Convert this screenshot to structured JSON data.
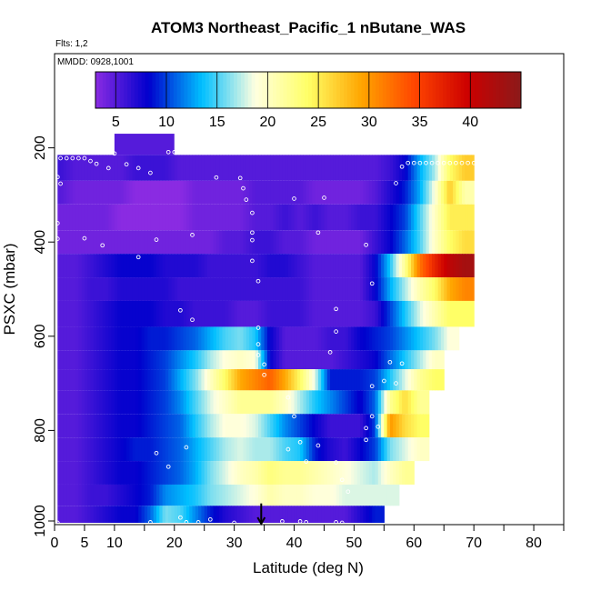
{
  "chart_data": {
    "type": "heatmap",
    "title": "ATOM3 Northeast_Pacific_1 nButane_WAS",
    "flights_label": "Flts: 1,2",
    "date_label": "MMDD: 0928,1001",
    "xlabel": "Latitude (deg N)",
    "ylabel": "PSXC (mbar)",
    "xlim": [
      0,
      85
    ],
    "ylim": [
      1000,
      0
    ],
    "x_ticks": [
      0,
      5,
      10,
      20,
      30,
      40,
      50,
      60,
      70,
      80
    ],
    "y_ticks": [
      200,
      400,
      600,
      800,
      1000
    ],
    "colorbar": {
      "range": [
        3,
        45
      ],
      "ticks": [
        5,
        10,
        15,
        20,
        25,
        30,
        35,
        40
      ],
      "colors": [
        "#8a2be2",
        "#0000cd",
        "#00bfff",
        "#ffffe0",
        "#ffff66",
        "#ffa500",
        "#ff4500",
        "#cc0000",
        "#8b1a1a"
      ]
    },
    "latitude_bins": [
      1,
      3.5,
      6,
      8.5,
      11,
      13.5,
      16,
      18.5,
      21,
      23.5,
      26,
      28.5,
      31,
      33.5,
      36,
      38.5,
      41,
      43.5,
      46,
      48.5,
      51,
      53.5,
      56,
      58.5,
      61,
      63.5,
      66,
      68.5,
      71
    ],
    "pressure_bands": [
      {
        "p_top": 170,
        "p_bot": 215,
        "values": [
          null,
          null,
          null,
          null,
          null,
          null,
          null,
          null,
          null,
          null,
          null,
          null,
          null,
          null,
          null,
          null,
          null,
          null,
          null,
          null,
          null,
          null,
          null,
          null,
          null,
          null,
          null,
          null,
          null
        ]
      },
      {
        "p_top": 215,
        "p_bot": 270,
        "values": [
          6,
          5,
          5,
          5,
          5,
          6,
          6,
          6,
          5,
          5,
          5,
          5,
          5,
          5,
          5,
          5,
          5,
          5,
          5,
          5,
          5,
          5,
          6,
          8,
          13,
          17,
          24,
          27,
          null
        ]
      },
      {
        "p_top": 270,
        "p_bot": 320,
        "values": [
          5,
          4,
          4,
          4,
          4,
          3,
          3,
          3,
          3,
          4,
          4,
          4,
          4,
          5,
          5,
          5,
          5,
          4,
          4,
          4,
          4,
          5,
          7,
          9,
          13,
          19,
          27,
          21,
          null
        ]
      },
      {
        "p_top": 320,
        "p_bot": 375,
        "values": [
          4,
          4,
          4,
          4,
          3,
          3,
          3,
          3,
          3,
          4,
          4,
          4,
          4,
          5,
          5,
          6,
          5,
          6,
          5,
          5,
          6,
          6,
          8,
          10,
          15,
          20,
          25,
          25,
          null
        ]
      },
      {
        "p_top": 375,
        "p_bot": 425,
        "values": [
          4,
          4,
          4,
          4,
          4,
          4,
          4,
          4,
          4,
          4,
          4,
          5,
          5,
          6,
          6,
          5,
          5,
          4,
          4,
          4,
          4,
          6,
          8,
          11,
          15,
          20,
          24,
          26,
          null
        ]
      },
      {
        "p_top": 425,
        "p_bot": 475,
        "values": [
          5,
          5,
          6,
          7,
          8,
          8,
          8,
          7,
          7,
          7,
          6,
          6,
          6,
          6,
          7,
          7,
          6,
          5,
          5,
          5,
          5,
          8,
          14,
          22,
          32,
          37,
          41,
          43,
          null
        ]
      },
      {
        "p_top": 475,
        "p_bot": 525,
        "values": [
          5,
          5,
          6,
          6,
          7,
          7,
          7,
          7,
          6,
          6,
          6,
          6,
          6,
          6,
          6,
          6,
          6,
          5,
          5,
          5,
          5,
          8,
          13,
          17,
          21,
          24,
          29,
          31,
          null
        ]
      },
      {
        "p_top": 525,
        "p_bot": 580,
        "values": [
          5,
          5,
          6,
          7,
          8,
          8,
          8,
          7,
          7,
          6,
          6,
          6,
          5,
          5,
          6,
          6,
          6,
          5,
          5,
          5,
          5,
          6,
          10,
          14,
          18,
          21,
          24,
          24,
          null
        ]
      },
      {
        "p_top": 580,
        "p_bot": 630,
        "values": [
          5,
          5,
          6,
          7,
          8,
          8,
          9,
          9,
          10,
          11,
          13,
          15,
          16,
          14,
          8,
          5,
          5,
          5,
          6,
          6,
          8,
          9,
          10,
          12,
          14,
          16,
          19,
          null,
          null
        ]
      },
      {
        "p_top": 630,
        "p_bot": 670,
        "values": [
          5,
          5,
          6,
          7,
          8,
          8,
          9,
          10,
          12,
          14,
          17,
          19,
          20,
          19,
          8,
          5,
          5,
          5,
          5,
          6,
          7,
          8,
          11,
          14,
          17,
          20,
          null,
          null,
          null
        ]
      },
      {
        "p_top": 670,
        "p_bot": 715,
        "values": [
          5,
          5,
          6,
          7,
          8,
          8,
          9,
          10,
          13,
          16,
          20,
          24,
          29,
          31,
          33,
          29,
          24,
          18,
          9,
          9,
          9,
          10,
          14,
          18,
          22,
          24,
          null,
          null,
          null
        ]
      },
      {
        "p_top": 715,
        "p_bot": 765,
        "values": [
          5,
          5,
          6,
          7,
          8,
          8,
          9,
          10,
          12,
          15,
          18,
          20,
          22,
          22,
          22,
          20,
          17,
          14,
          12,
          10,
          8,
          11,
          22,
          26,
          22,
          null,
          null,
          null,
          null
        ]
      },
      {
        "p_top": 765,
        "p_bot": 815,
        "values": [
          5,
          5,
          6,
          7,
          8,
          8,
          9,
          10,
          11,
          14,
          17,
          19,
          19,
          18,
          15,
          12,
          10,
          8,
          6,
          6,
          6,
          10,
          30,
          26,
          24,
          null,
          null,
          null,
          null
        ]
      },
      {
        "p_top": 815,
        "p_bot": 865,
        "values": [
          5,
          5,
          6,
          7,
          8,
          9,
          9,
          10,
          11,
          13,
          15,
          17,
          18,
          17,
          17,
          15,
          14,
          9,
          7,
          6,
          8,
          10,
          16,
          18,
          20,
          null,
          null,
          null,
          null
        ]
      },
      {
        "p_top": 865,
        "p_bot": 915,
        "values": [
          5,
          5,
          6,
          7,
          8,
          8,
          9,
          10,
          11,
          13,
          16,
          18,
          20,
          21,
          23,
          22,
          22,
          21,
          20,
          19,
          18,
          17,
          20,
          22,
          null,
          null,
          null,
          null,
          null
        ]
      },
      {
        "p_top": 915,
        "p_bot": 960,
        "values": [
          5,
          5,
          6,
          6,
          7,
          8,
          9,
          12,
          13,
          14,
          16,
          17,
          18,
          19,
          21,
          20,
          20,
          19,
          19,
          18,
          18,
          18,
          18,
          null,
          null,
          null,
          null,
          null,
          null
        ]
      },
      {
        "p_top": 960,
        "p_bot": 1005,
        "values": [
          5,
          5,
          6,
          7,
          8,
          8,
          11,
          16,
          15,
          12,
          9,
          7,
          6,
          5,
          5,
          5,
          5,
          5,
          5,
          5,
          7,
          9,
          null,
          null,
          null,
          null,
          null,
          null,
          null
        ]
      }
    ],
    "top_patch": {
      "lat_start": 10,
      "lat_end": 20,
      "p_top": 170,
      "p_bot": 215,
      "value": 5
    },
    "observations": [
      {
        "lat": 1,
        "p": 222
      },
      {
        "lat": 2,
        "p": 222
      },
      {
        "lat": 3,
        "p": 222
      },
      {
        "lat": 4,
        "p": 222
      },
      {
        "lat": 5,
        "p": 222
      },
      {
        "lat": 6,
        "p": 228
      },
      {
        "lat": 7,
        "p": 234
      },
      {
        "lat": 9,
        "p": 243
      },
      {
        "lat": 10,
        "p": 212
      },
      {
        "lat": 12,
        "p": 235
      },
      {
        "lat": 14,
        "p": 243
      },
      {
        "lat": 16,
        "p": 253
      },
      {
        "lat": 19,
        "p": 209
      },
      {
        "lat": 20,
        "p": 209
      },
      {
        "lat": 0.5,
        "p": 262
      },
      {
        "lat": 1,
        "p": 276
      },
      {
        "lat": 0.5,
        "p": 360
      },
      {
        "lat": 0.5,
        "p": 393
      },
      {
        "lat": 5,
        "p": 392
      },
      {
        "lat": 8,
        "p": 407
      },
      {
        "lat": 14,
        "p": 432
      },
      {
        "lat": 17,
        "p": 395
      },
      {
        "lat": 23,
        "p": 385
      },
      {
        "lat": 27,
        "p": 263
      },
      {
        "lat": 31,
        "p": 264
      },
      {
        "lat": 31.5,
        "p": 286
      },
      {
        "lat": 32,
        "p": 310
      },
      {
        "lat": 33,
        "p": 338
      },
      {
        "lat": 33,
        "p": 380
      },
      {
        "lat": 33,
        "p": 396
      },
      {
        "lat": 33,
        "p": 440
      },
      {
        "lat": 34,
        "p": 483
      },
      {
        "lat": 34,
        "p": 582
      },
      {
        "lat": 34,
        "p": 617
      },
      {
        "lat": 34,
        "p": 640
      },
      {
        "lat": 35,
        "p": 660
      },
      {
        "lat": 35,
        "p": 682
      },
      {
        "lat": 39,
        "p": 730
      },
      {
        "lat": 40,
        "p": 770
      },
      {
        "lat": 39,
        "p": 840
      },
      {
        "lat": 41,
        "p": 825
      },
      {
        "lat": 44,
        "p": 832
      },
      {
        "lat": 42,
        "p": 866
      },
      {
        "lat": 40,
        "p": 308
      },
      {
        "lat": 44,
        "p": 380
      },
      {
        "lat": 45,
        "p": 306
      },
      {
        "lat": 47,
        "p": 542
      },
      {
        "lat": 47,
        "p": 590
      },
      {
        "lat": 46,
        "p": 634
      },
      {
        "lat": 47,
        "p": 868
      },
      {
        "lat": 48,
        "p": 905
      },
      {
        "lat": 49,
        "p": 930
      },
      {
        "lat": 52,
        "p": 820
      },
      {
        "lat": 53,
        "p": 706
      },
      {
        "lat": 55,
        "p": 695
      },
      {
        "lat": 56,
        "p": 655
      },
      {
        "lat": 57,
        "p": 700
      },
      {
        "lat": 58,
        "p": 658
      },
      {
        "lat": 53,
        "p": 770
      },
      {
        "lat": 52,
        "p": 795
      },
      {
        "lat": 54,
        "p": 792
      },
      {
        "lat": 53,
        "p": 488
      },
      {
        "lat": 52,
        "p": 406
      },
      {
        "lat": 57,
        "p": 275
      },
      {
        "lat": 58,
        "p": 240
      },
      {
        "lat": 59,
        "p": 232
      },
      {
        "lat": 60,
        "p": 232
      },
      {
        "lat": 61,
        "p": 232
      },
      {
        "lat": 62,
        "p": 232
      },
      {
        "lat": 63,
        "p": 232
      },
      {
        "lat": 64,
        "p": 232
      },
      {
        "lat": 65,
        "p": 232
      },
      {
        "lat": 66,
        "p": 232
      },
      {
        "lat": 67,
        "p": 232
      },
      {
        "lat": 68,
        "p": 232
      },
      {
        "lat": 69,
        "p": 232
      },
      {
        "lat": 70,
        "p": 232
      },
      {
        "lat": 16,
        "p": 995
      },
      {
        "lat": 22,
        "p": 995
      },
      {
        "lat": 24,
        "p": 995
      },
      {
        "lat": 21,
        "p": 985
      },
      {
        "lat": 38,
        "p": 993
      },
      {
        "lat": 41,
        "p": 993
      },
      {
        "lat": 42,
        "p": 995
      },
      {
        "lat": 47,
        "p": 995
      },
      {
        "lat": 48,
        "p": 1001
      },
      {
        "lat": 0.5,
        "p": 1001
      },
      {
        "lat": 30,
        "p": 1000
      },
      {
        "lat": 26,
        "p": 989
      },
      {
        "lat": 17,
        "p": 848
      },
      {
        "lat": 19,
        "p": 877
      },
      {
        "lat": 22,
        "p": 836
      },
      {
        "lat": 21,
        "p": 545
      },
      {
        "lat": 23,
        "p": 565
      }
    ],
    "marker": {
      "lat": 34.5,
      "p": 960,
      "label": ""
    }
  }
}
